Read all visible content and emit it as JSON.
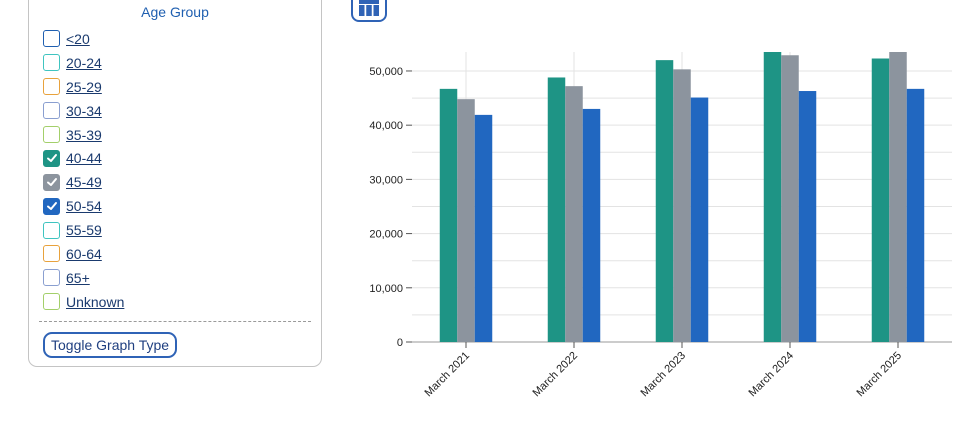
{
  "panel": {
    "title": "Age Group",
    "items": [
      {
        "label": "<20",
        "checked": false,
        "color": "#1f5fb0"
      },
      {
        "label": "20-24",
        "checked": false,
        "color": "#3fc4c0"
      },
      {
        "label": "25-29",
        "checked": false,
        "color": "#e8a23c"
      },
      {
        "label": "30-34",
        "checked": false,
        "color": "#8a9fd0"
      },
      {
        "label": "35-39",
        "checked": false,
        "color": "#a3cf6a"
      },
      {
        "label": "40-44",
        "checked": true,
        "color": "#1e9485"
      },
      {
        "label": "45-49",
        "checked": true,
        "color": "#8c949e"
      },
      {
        "label": "50-54",
        "checked": true,
        "color": "#2167c0"
      },
      {
        "label": "55-59",
        "checked": false,
        "color": "#3fc4c0"
      },
      {
        "label": "60-64",
        "checked": false,
        "color": "#e8a23c"
      },
      {
        "label": "65+",
        "checked": false,
        "color": "#8a9fd0"
      },
      {
        "label": "Unknown",
        "checked": false,
        "color": "#a3cf6a"
      }
    ],
    "toggle_label": "Toggle Graph Type"
  },
  "toolbar": {
    "grid_icon": "table-icon",
    "accent": "#2f63b6"
  },
  "chart_data": {
    "type": "bar",
    "categories": [
      "March 2021",
      "March 2022",
      "March 2023",
      "March 2024",
      "March 2025"
    ],
    "series": [
      {
        "name": "40-44",
        "color": "#1e9485",
        "values": [
          46700,
          48800,
          52000,
          53500,
          52300
        ]
      },
      {
        "name": "45-49",
        "color": "#8c949e",
        "values": [
          44800,
          47200,
          50300,
          52900,
          53500
        ]
      },
      {
        "name": "50-54",
        "color": "#2167c0",
        "values": [
          41900,
          43000,
          45100,
          46300,
          46700
        ]
      }
    ],
    "yticks": [
      "0",
      "10,000",
      "20,000",
      "30,000",
      "40,000",
      "50,000"
    ],
    "ylim": [
      0,
      53500
    ],
    "grid": true,
    "legend": "none"
  }
}
